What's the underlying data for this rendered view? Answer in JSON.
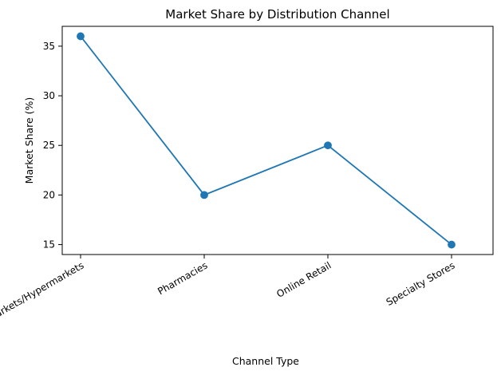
{
  "chart_data": {
    "type": "line",
    "title": "Market Share by Distribution Channel",
    "xlabel": "Channel Type",
    "ylabel": "Market Share (%)",
    "categories": [
      "Supermarkets/Hypermarkets",
      "Pharmacies",
      "Online Retail",
      "Specialty Stores"
    ],
    "series": [
      {
        "values": [
          36,
          20,
          25,
          15
        ],
        "color": "#1f77b4",
        "marker": "circle"
      }
    ],
    "ylim": [
      14.0,
      37.0
    ],
    "yticks": [
      15,
      20,
      25,
      30,
      35
    ],
    "grid": false,
    "legend": "none",
    "xtick_rotation": 30
  }
}
